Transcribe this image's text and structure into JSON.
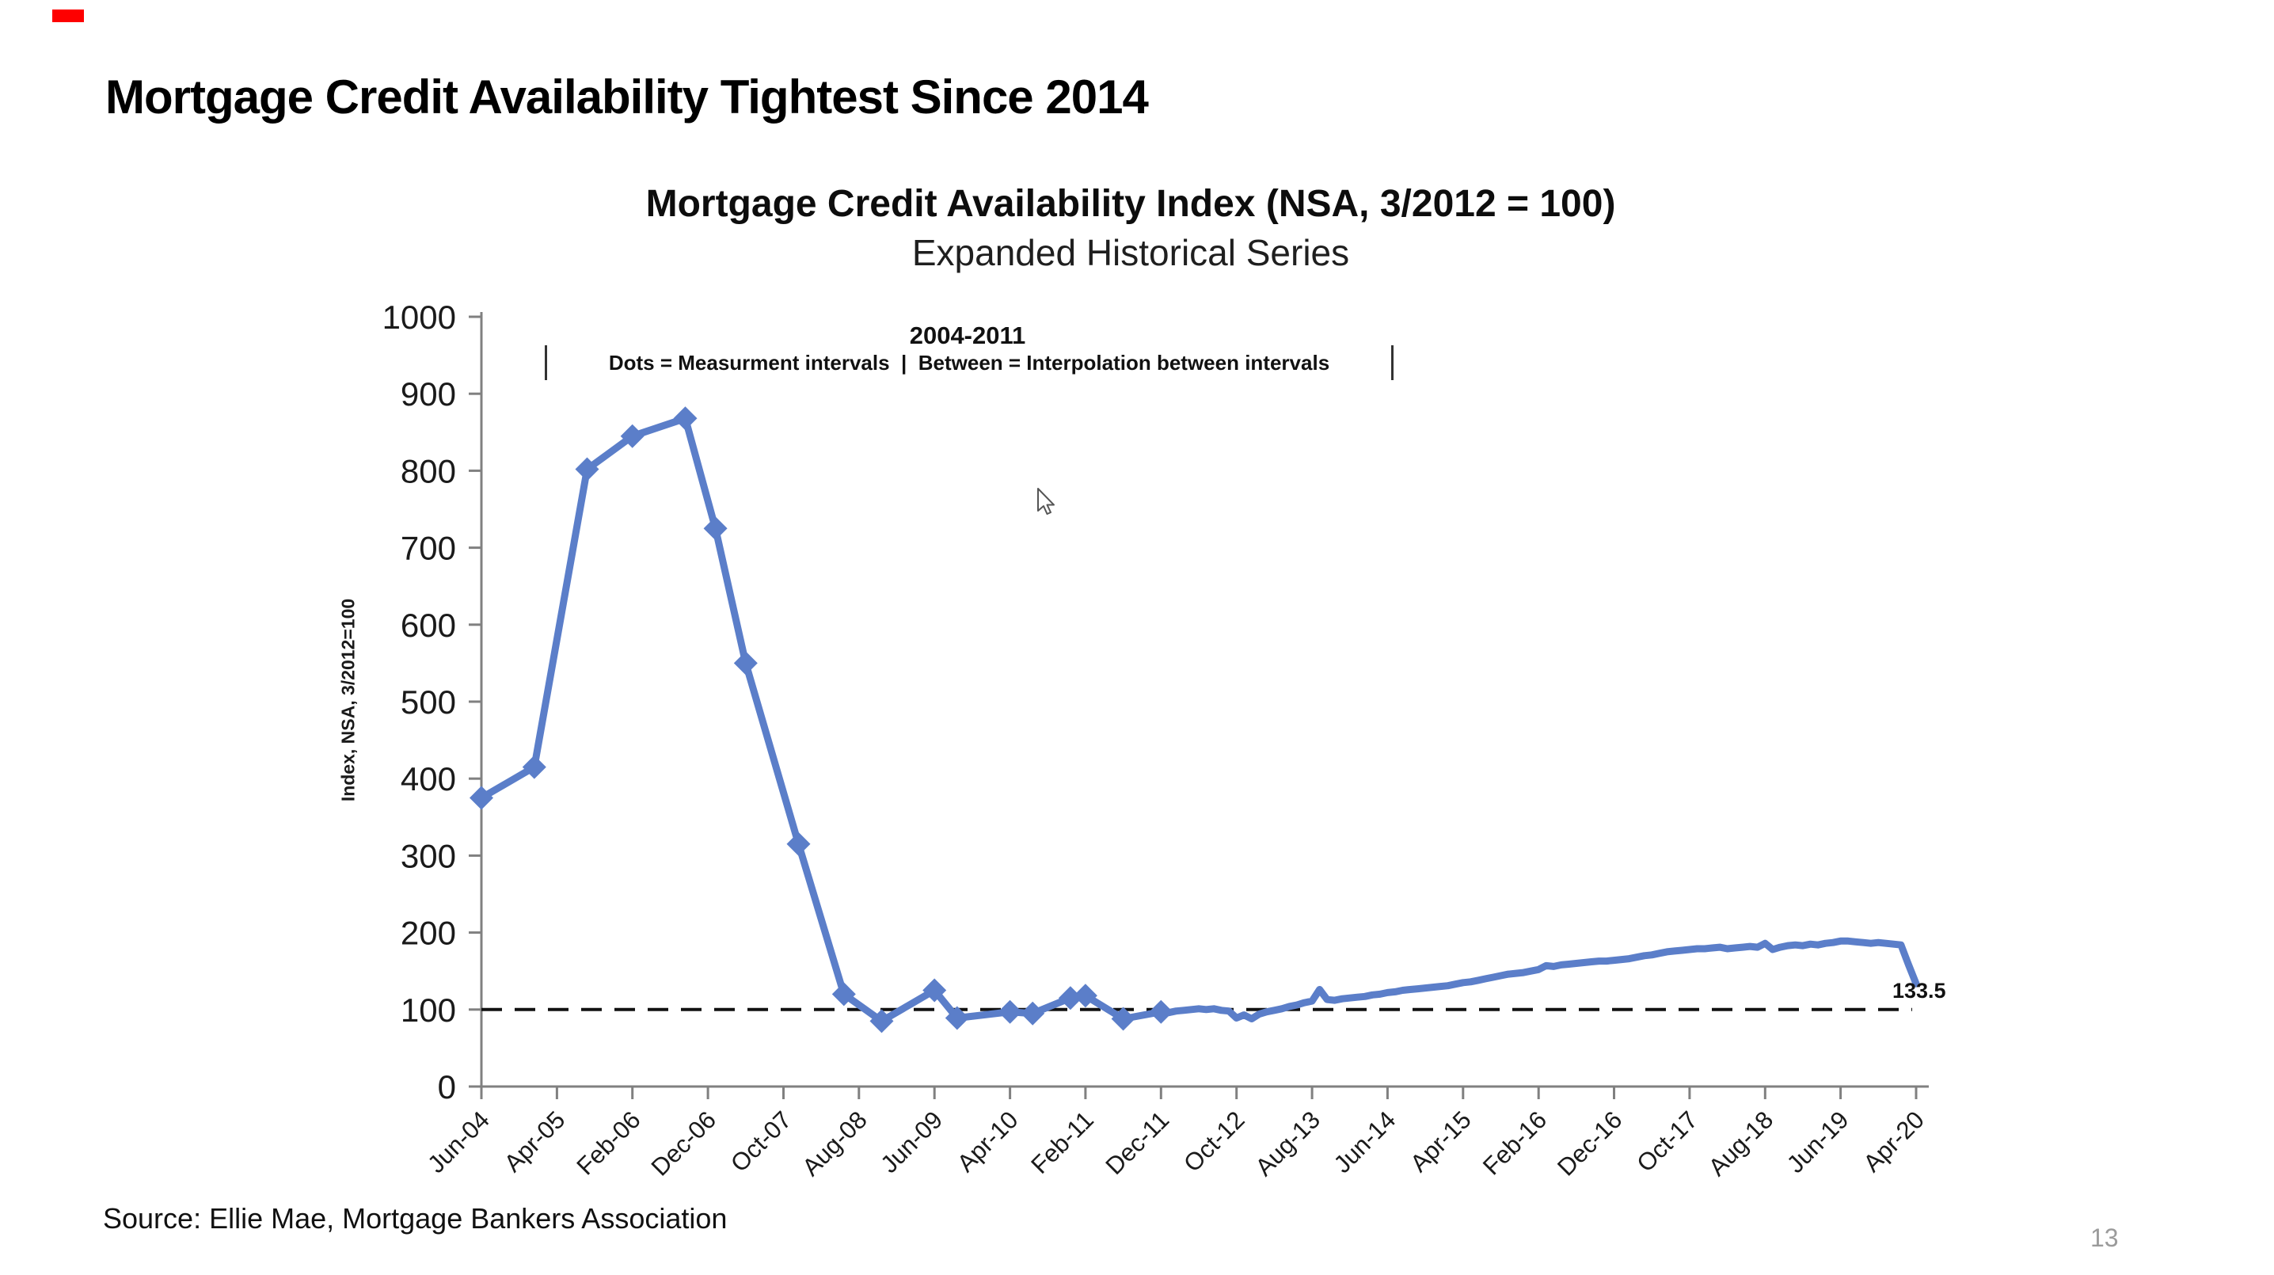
{
  "slide": {
    "title": "Mortgage Credit Availability Tightest Since 2014",
    "source": "Source: Ellie Mae, Mortgage Bankers Association",
    "page_number": "13",
    "red_marker_color": "#fe0000"
  },
  "chart_data": {
    "type": "line",
    "title": "Mortgage Credit Availability Index (NSA, 3/2012 = 100)",
    "subtitle": "Expanded Historical Series",
    "ylabel": "Index, NSA, 3/2012=100",
    "annotation": {
      "period": "2004-2011",
      "legend": "Dots = Measurment intervals  |  Between = Interpolation between intervals"
    },
    "line_color": "#5b7ec9",
    "axis_color": "#808080",
    "reference_line_value": 100,
    "end_label": "133.5",
    "ylim": [
      0,
      1000
    ],
    "yticks": [
      0,
      100,
      200,
      300,
      400,
      500,
      600,
      700,
      800,
      900,
      1000
    ],
    "xtick_labels": [
      "Jun-04",
      "Apr-05",
      "Feb-06",
      "Dec-06",
      "Oct-07",
      "Aug-08",
      "Jun-09",
      "Apr-10",
      "Feb-11",
      "Dec-11",
      "Oct-12",
      "Aug-13",
      "Jun-14",
      "Apr-15",
      "Feb-16",
      "Dec-16",
      "Oct-17",
      "Aug-18",
      "Jun-19",
      "Apr-20"
    ],
    "x_months_per_tick": 10,
    "x_total_months": 190,
    "grid": false,
    "legend_position": "none",
    "measurement_dots": [
      {
        "label": "Jun-04",
        "m": 0,
        "v": 375
      },
      {
        "label": "Jan-05",
        "m": 7,
        "v": 415
      },
      {
        "label": "Aug-05",
        "m": 14,
        "v": 802
      },
      {
        "label": "Feb-06",
        "m": 20,
        "v": 845
      },
      {
        "label": "Sep-06",
        "m": 27,
        "v": 868
      },
      {
        "label": "Jan-07",
        "m": 31,
        "v": 725
      },
      {
        "label": "May-07",
        "m": 35,
        "v": 550
      },
      {
        "label": "Dec-07",
        "m": 42,
        "v": 315
      },
      {
        "label": "Jun-08",
        "m": 48,
        "v": 120
      },
      {
        "label": "Nov-08",
        "m": 53,
        "v": 85
      },
      {
        "label": "Jun-09",
        "m": 60,
        "v": 125
      },
      {
        "label": "Sep-09",
        "m": 63,
        "v": 89
      },
      {
        "label": "Apr-10",
        "m": 70,
        "v": 97
      },
      {
        "label": "Jul-10",
        "m": 73,
        "v": 95
      },
      {
        "label": "Dec-10",
        "m": 78,
        "v": 115
      },
      {
        "label": "Feb-11",
        "m": 80,
        "v": 118
      },
      {
        "label": "Jul-11",
        "m": 85,
        "v": 88
      },
      {
        "label": "Dec-11",
        "m": 90,
        "v": 97
      }
    ],
    "monthly_from_2012": {
      "start_label": "Jan-12",
      "start_m": 91,
      "values": [
        96,
        98,
        99,
        100,
        101,
        100,
        101,
        99,
        98,
        89,
        93,
        88,
        94,
        97,
        99,
        101,
        104,
        106,
        109,
        111,
        126,
        113,
        112,
        114,
        115,
        116,
        117,
        119,
        120,
        122,
        123,
        125,
        126,
        127,
        128,
        129,
        130,
        131,
        133,
        135,
        136,
        138,
        140,
        142,
        144,
        146,
        147,
        148,
        150,
        152,
        157,
        156,
        158,
        159,
        160,
        161,
        162,
        163,
        163,
        164,
        165,
        166,
        168,
        170,
        171,
        173,
        175,
        176,
        177,
        178,
        179,
        179,
        180,
        181,
        179,
        180,
        181,
        182,
        181,
        186,
        178,
        181,
        183,
        184,
        183,
        185,
        184,
        186,
        187,
        189,
        189,
        188,
        187,
        186,
        187,
        186,
        185,
        184,
        158,
        133.5
      ]
    }
  }
}
